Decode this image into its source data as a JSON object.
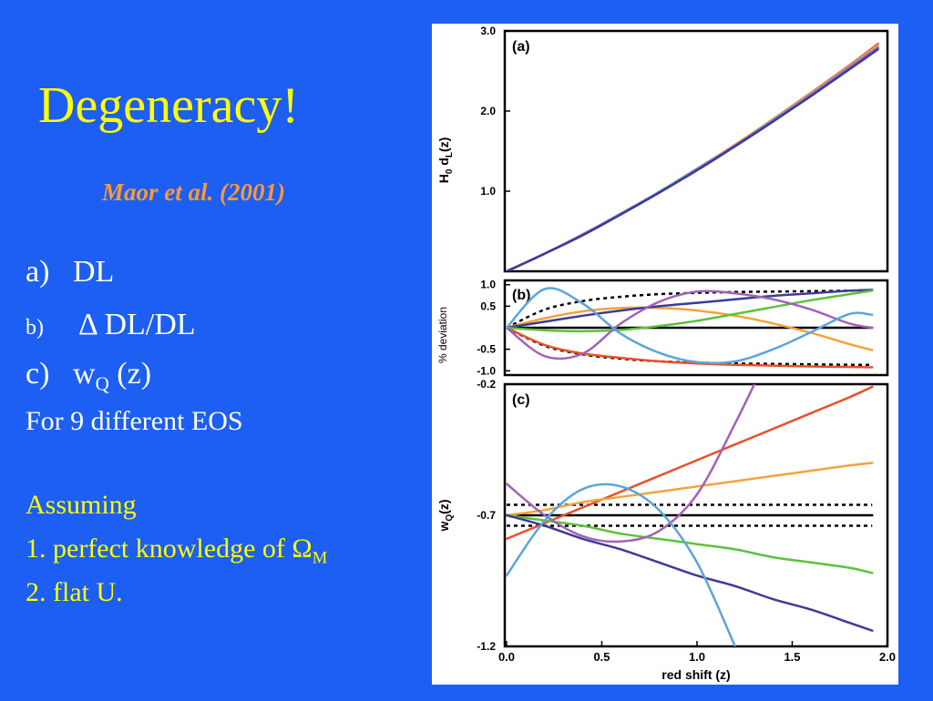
{
  "slide": {
    "title": "Degeneracy!",
    "citation": "Maor et al. (2001)",
    "items": [
      {
        "label": "a)",
        "text": "DL"
      },
      {
        "label": "b)",
        "text": "Δ DL/DL"
      },
      {
        "label": "c)",
        "text": "w",
        "sub": "Q",
        "suffix": " (z)"
      }
    ],
    "eos_line": "For 9 different EOS",
    "assuming_heading": "Assuming",
    "assumption_1": "1. perfect knowledge of Ω",
    "assumption_1_sub": "M",
    "assumption_2": "2. flat U."
  },
  "colors": {
    "background": "#1c5ff2",
    "title": "#ffff00",
    "citation": "#ff9933",
    "body_text": "#ffffff",
    "assumption_text": "#ffff00",
    "red": "#e8502a",
    "orange": "#f5a23a",
    "green": "#5cc23a",
    "navy": "#3c3c96",
    "purple": "#a063b4",
    "lightblue": "#5aa5dc",
    "black": "#000000"
  },
  "chart_data": [
    {
      "type": "line",
      "panel_label": "(a)",
      "ylabel": "H0 dL(z)",
      "ylabel_main": "H",
      "ylabel_sub1": "0",
      "ylabel_mid": " d",
      "ylabel_sub2": "L",
      "ylabel_end": "(z)",
      "xlim": [
        0,
        2.0
      ],
      "ylim": [
        0,
        3.0
      ],
      "yticks": [
        1.0,
        2.0,
        3.0
      ],
      "ytick_labels": [
        "1.0",
        "2.0",
        "3.0"
      ],
      "x": [
        0,
        0.2,
        0.4,
        0.6,
        0.8,
        1.0,
        1.2,
        1.4,
        1.6,
        1.8,
        1.95
      ],
      "series": [
        {
          "color": "#e8502a",
          "values": [
            0,
            0.22,
            0.46,
            0.72,
            0.99,
            1.28,
            1.58,
            1.9,
            2.23,
            2.57,
            2.84
          ]
        },
        {
          "color": "#f5a23a",
          "values": [
            0,
            0.22,
            0.46,
            0.72,
            0.99,
            1.28,
            1.58,
            1.9,
            2.22,
            2.56,
            2.82
          ]
        },
        {
          "color": "#5aa5dc",
          "values": [
            0,
            0.22,
            0.46,
            0.72,
            0.99,
            1.28,
            1.57,
            1.89,
            2.21,
            2.55,
            2.8
          ]
        },
        {
          "color": "#a063b4",
          "values": [
            0,
            0.22,
            0.46,
            0.71,
            0.98,
            1.27,
            1.57,
            1.88,
            2.2,
            2.54,
            2.79
          ]
        },
        {
          "color": "#3c3c96",
          "values": [
            0,
            0.22,
            0.45,
            0.71,
            0.98,
            1.26,
            1.56,
            1.87,
            2.19,
            2.52,
            2.77
          ]
        }
      ]
    },
    {
      "type": "line",
      "panel_label": "(b)",
      "ylabel": "% deviation",
      "xlim": [
        0,
        2.0
      ],
      "ylim": [
        -1.1,
        1.1
      ],
      "yticks": [
        1.0,
        0.5,
        -0.5,
        -1.0
      ],
      "ytick_labels": [
        "1.0",
        "0.5",
        "-0.5",
        "-1.0"
      ],
      "x": [
        0,
        0.2,
        0.4,
        0.6,
        0.8,
        1.0,
        1.2,
        1.4,
        1.6,
        1.8,
        1.92
      ],
      "series": [
        {
          "color": "#000000",
          "dashed": true,
          "values": [
            0,
            0.42,
            0.62,
            0.72,
            0.78,
            0.81,
            0.83,
            0.84,
            0.85,
            0.86,
            0.86
          ]
        },
        {
          "color": "#000000",
          "dashed": true,
          "values": [
            0,
            -0.42,
            -0.62,
            -0.72,
            -0.78,
            -0.81,
            -0.83,
            -0.84,
            -0.85,
            -0.86,
            -0.86
          ]
        },
        {
          "color": "#000000",
          "values": [
            0,
            0,
            0,
            0,
            0,
            0,
            0,
            0,
            0,
            0,
            0
          ]
        },
        {
          "color": "#e8502a",
          "values": [
            0,
            -0.4,
            -0.6,
            -0.7,
            -0.78,
            -0.83,
            -0.86,
            -0.88,
            -0.9,
            -0.91,
            -0.92
          ]
        },
        {
          "color": "#f5a23a",
          "values": [
            0,
            0.22,
            0.38,
            0.46,
            0.46,
            0.4,
            0.28,
            0.1,
            -0.12,
            -0.38,
            -0.52
          ]
        },
        {
          "color": "#3c3c96",
          "values": [
            0,
            0.14,
            0.28,
            0.4,
            0.5,
            0.58,
            0.66,
            0.74,
            0.8,
            0.86,
            0.88
          ]
        },
        {
          "color": "#5cc23a",
          "values": [
            0,
            -0.06,
            -0.08,
            -0.05,
            0.04,
            0.16,
            0.32,
            0.48,
            0.64,
            0.78,
            0.86
          ]
        },
        {
          "color": "#a063b4",
          "values": [
            0,
            -0.66,
            -0.6,
            0.1,
            0.6,
            0.84,
            0.8,
            0.66,
            0.42,
            0.1,
            0.0
          ]
        },
        {
          "color": "#5aa5dc",
          "values": [
            0,
            0.9,
            0.56,
            -0.14,
            -0.58,
            -0.8,
            -0.78,
            -0.5,
            -0.1,
            0.32,
            0.3
          ]
        }
      ]
    },
    {
      "type": "line",
      "panel_label": "(c)",
      "ylabel": "wQ(z)",
      "ylabel_main": "w",
      "ylabel_sub": "Q",
      "ylabel_end": "(z)",
      "xlabel": "red shift (z)",
      "xlim": [
        0,
        2.0
      ],
      "ylim": [
        -1.2,
        -0.2
      ],
      "xticks": [
        0.0,
        0.5,
        1.0,
        1.5,
        2.0
      ],
      "xtick_labels": [
        "0.0",
        "0.5",
        "1.0",
        "1.5",
        "2.0"
      ],
      "yticks": [
        -0.2,
        -0.7,
        -1.2
      ],
      "ytick_labels": [
        "-0.2",
        "-0.7",
        "-1.2"
      ],
      "x": [
        0,
        0.2,
        0.4,
        0.6,
        0.8,
        1.0,
        1.2,
        1.4,
        1.6,
        1.8,
        1.92
      ],
      "series": [
        {
          "color": "#000000",
          "values": [
            -0.7,
            -0.7,
            -0.7,
            -0.7,
            -0.7,
            -0.7,
            -0.7,
            -0.7,
            -0.7,
            -0.7,
            -0.7
          ]
        },
        {
          "color": "#000000",
          "dashed": true,
          "values": [
            -0.66,
            -0.66,
            -0.66,
            -0.66,
            -0.66,
            -0.66,
            -0.66,
            -0.66,
            -0.66,
            -0.66,
            -0.66
          ]
        },
        {
          "color": "#000000",
          "dashed": true,
          "values": [
            -0.74,
            -0.74,
            -0.74,
            -0.74,
            -0.74,
            -0.74,
            -0.74,
            -0.74,
            -0.74,
            -0.74,
            -0.74
          ]
        },
        {
          "color": "#e8502a",
          "values": [
            -0.79,
            -0.73,
            -0.67,
            -0.61,
            -0.55,
            -0.49,
            -0.43,
            -0.37,
            -0.31,
            -0.25,
            -0.21
          ]
        },
        {
          "color": "#f5a23a",
          "values": [
            -0.7,
            -0.68,
            -0.65,
            -0.63,
            -0.61,
            -0.59,
            -0.57,
            -0.55,
            -0.53,
            -0.51,
            -0.5
          ]
        },
        {
          "color": "#5cc23a",
          "values": [
            -0.7,
            -0.72,
            -0.74,
            -0.77,
            -0.79,
            -0.81,
            -0.83,
            -0.86,
            -0.88,
            -0.9,
            -0.92
          ]
        },
        {
          "color": "#3c3c96",
          "values": [
            -0.7,
            -0.74,
            -0.79,
            -0.83,
            -0.88,
            -0.93,
            -0.97,
            -1.02,
            -1.06,
            -1.11,
            -1.14
          ]
        },
        {
          "color": "#a063b4",
          "values": [
            -0.58,
            -0.7,
            -0.78,
            -0.8,
            -0.76,
            -0.62,
            -0.35,
            -0.05,
            null,
            null,
            null
          ]
        },
        {
          "color": "#5aa5dc",
          "values": [
            -0.93,
            -0.72,
            -0.6,
            -0.59,
            -0.68,
            -0.88,
            -1.2,
            null,
            null,
            null,
            null
          ]
        }
      ]
    }
  ]
}
